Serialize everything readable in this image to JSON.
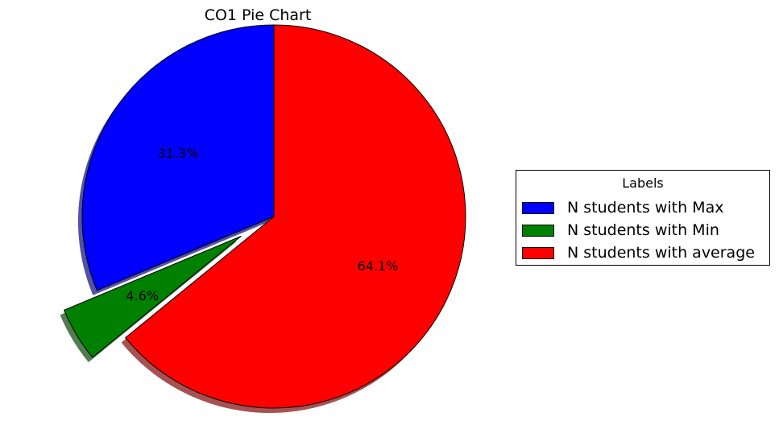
{
  "chart_data": {
    "type": "pie",
    "title": "CO1 Pie Chart",
    "slices": [
      {
        "label": "N students with Max",
        "percent": 31.3,
        "pct_label": "31.3%",
        "color": "#0000ff",
        "exploded": false
      },
      {
        "label": "N students with Min",
        "percent": 4.6,
        "pct_label": "4.6%",
        "color": "#008000",
        "exploded": true
      },
      {
        "label": "N students with average",
        "percent": 64.1,
        "pct_label": "64.1%",
        "color": "#ff0000",
        "exploded": false
      }
    ],
    "start_angle_deg": 90,
    "direction": "counterclockwise",
    "shadow": true,
    "legend": {
      "title": "Labels",
      "placement": "right",
      "entries": [
        "N students with Max",
        "N students with Min",
        "N students with average"
      ]
    }
  }
}
